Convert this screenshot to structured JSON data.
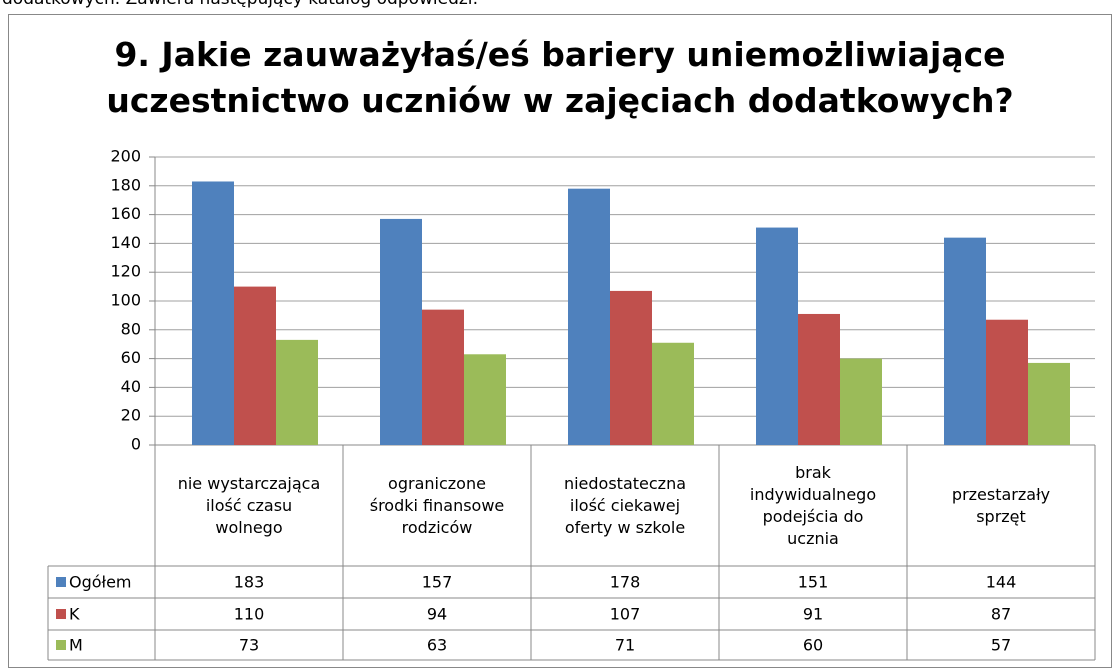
{
  "header_text": "dodatkowych. Zawiera następujący katalog odpowiedzi:",
  "chart_data": {
    "type": "bar",
    "title": "9. Jakie zauważyłaś/eś bariery uniemożliwiające\nuczestnictwo uczniów w zajęciach dodatkowych?",
    "categories": [
      "nie wystarczająca\nilość czasu\nwolnego",
      "ograniczone\nśrodki finansowe\nrodziców",
      "niedostateczna\nilość ciekawej\noferty w szkole",
      "brak\nindywidualnego\npodejścia do\nucznia",
      "przestarzały\nsprzęt"
    ],
    "series": [
      {
        "name": "Ogółem",
        "color": "#4f81bd",
        "values": [
          183,
          157,
          178,
          151,
          144
        ]
      },
      {
        "name": "K",
        "color": "#c0504d",
        "values": [
          110,
          94,
          107,
          91,
          87
        ]
      },
      {
        "name": "M",
        "color": "#9bbb59",
        "values": [
          73,
          63,
          71,
          60,
          57
        ]
      }
    ],
    "ylim": [
      0,
      200
    ],
    "yticks": [
      0,
      20,
      40,
      60,
      80,
      100,
      120,
      140,
      160,
      180,
      200
    ],
    "grid": true
  }
}
